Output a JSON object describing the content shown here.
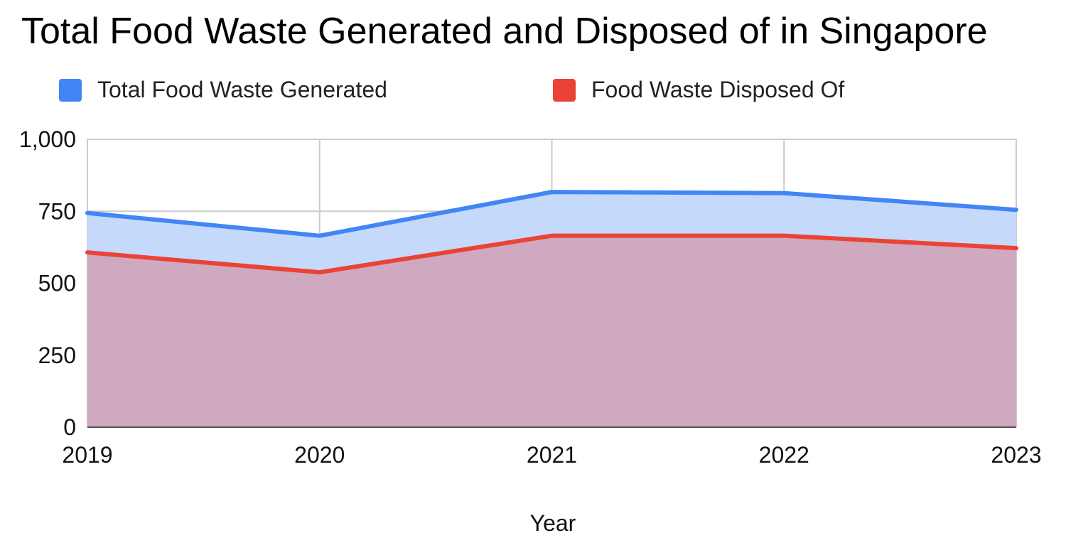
{
  "chart_data": {
    "type": "area",
    "title": "Total Food Waste Generated and Disposed of in Singapore",
    "xlabel": "Year",
    "ylabel": "",
    "categories": [
      "2019",
      "2020",
      "2021",
      "2022",
      "2023"
    ],
    "ylim": [
      0,
      1000
    ],
    "yticks": [
      0,
      250,
      500,
      750,
      1000
    ],
    "ytick_labels": [
      "0",
      "250",
      "500",
      "750",
      "1,000"
    ],
    "grid": true,
    "legend_position": "top",
    "series": [
      {
        "name": "Total Food Waste Generated",
        "values": [
          744,
          665,
          817,
          813,
          755
        ],
        "color": "#4285f4",
        "fill": "#c5d9fb"
      },
      {
        "name": "Food Waste Disposed Of",
        "values": [
          607,
          538,
          665,
          665,
          622
        ],
        "color": "#ea4335",
        "fill": "#cfa9c0"
      }
    ],
    "colors": {
      "grid": "#cccccc",
      "baseline": "#555555"
    }
  }
}
